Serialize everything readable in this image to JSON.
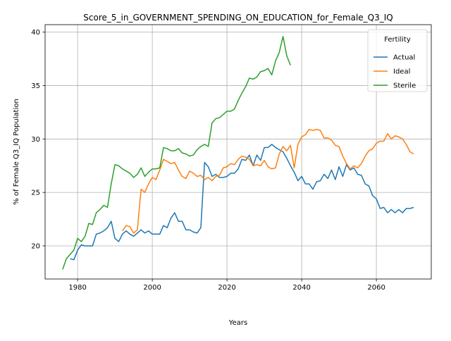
{
  "chart_data": {
    "type": "line",
    "title": "Score_5_in_GOVERNMENT_SPENDING_ON_EDUCATION_for_Female_Q3_IQ",
    "xlabel": "Years",
    "ylabel": "% of Female Q3_IQ Population",
    "xlim": [
      1971.3,
      2074.7
    ],
    "ylim": [
      16.9,
      40.7
    ],
    "xticks": [
      1980,
      2000,
      2020,
      2040,
      2060
    ],
    "yticks": [
      20,
      25,
      30,
      35,
      40
    ],
    "grid": true,
    "legend": {
      "title": "Fertility",
      "position": "top-right"
    },
    "series": [
      {
        "name": "Actual",
        "color": "#1f77b4",
        "x": [
          1978,
          1979,
          1980,
          1981,
          1982,
          1983,
          1984,
          1985,
          1986,
          1987,
          1988,
          1989,
          1990,
          1991,
          1992,
          1993,
          1994,
          1995,
          1996,
          1997,
          1998,
          1999,
          2000,
          2001,
          2002,
          2003,
          2004,
          2005,
          2006,
          2007,
          2008,
          2009,
          2010,
          2011,
          2012,
          2013,
          2014,
          2015,
          2016,
          2017,
          2018,
          2019,
          2020,
          2021,
          2022,
          2023,
          2024,
          2025,
          2026,
          2027,
          2028,
          2029,
          2030,
          2031,
          2032,
          2033,
          2034,
          2035,
          2036,
          2037,
          2038,
          2039,
          2040,
          2041,
          2042,
          2043,
          2044,
          2045,
          2046,
          2047,
          2048,
          2049,
          2050,
          2051,
          2052,
          2053,
          2054,
          2055,
          2056,
          2057,
          2058,
          2059,
          2060,
          2061,
          2062,
          2063,
          2064,
          2065,
          2066,
          2067,
          2068,
          2069,
          2070
        ],
        "values": [
          18.8,
          18.7,
          19.6,
          20.1,
          20.0,
          20.0,
          20.0,
          21.1,
          21.2,
          21.4,
          21.7,
          22.3,
          20.7,
          20.4,
          21.1,
          21.4,
          21.1,
          20.9,
          21.2,
          21.5,
          21.2,
          21.4,
          21.1,
          21.1,
          21.1,
          21.9,
          21.7,
          22.6,
          23.1,
          22.3,
          22.3,
          21.5,
          21.5,
          21.3,
          21.2,
          21.7,
          27.8,
          27.4,
          26.5,
          26.7,
          26.4,
          26.4,
          26.5,
          26.8,
          26.8,
          27.2,
          28.1,
          28.0,
          28.5,
          27.5,
          28.5,
          28.0,
          29.2,
          29.2,
          29.5,
          29.2,
          29.0,
          28.8,
          28.2,
          27.5,
          26.9,
          26.1,
          26.5,
          25.8,
          25.8,
          25.3,
          26.0,
          26.1,
          26.7,
          26.3,
          27.1,
          26.2,
          27.4,
          26.5,
          27.6,
          27.1,
          27.3,
          26.7,
          26.6,
          25.8,
          25.6,
          24.7,
          24.4,
          23.5,
          23.6,
          23.1,
          23.4,
          23.1,
          23.4,
          23.1,
          23.5,
          23.5,
          23.6
        ]
      },
      {
        "name": "Ideal",
        "color": "#ff7f0e",
        "x": [
          1992,
          1993,
          1994,
          1995,
          1996,
          1997,
          1998,
          1999,
          2000,
          2001,
          2002,
          2003,
          2004,
          2005,
          2006,
          2007,
          2008,
          2009,
          2010,
          2011,
          2012,
          2013,
          2014,
          2015,
          2016,
          2017,
          2018,
          2019,
          2020,
          2021,
          2022,
          2023,
          2024,
          2025,
          2026,
          2027,
          2028,
          2029,
          2030,
          2031,
          2032,
          2033,
          2034,
          2035,
          2036,
          2037,
          2038,
          2039,
          2040,
          2041,
          2042,
          2043,
          2044,
          2045,
          2046,
          2047,
          2048,
          2049,
          2050,
          2051,
          2052,
          2053,
          2054,
          2055,
          2056,
          2057,
          2058,
          2059,
          2060,
          2061,
          2062,
          2063,
          2064,
          2065,
          2066,
          2067,
          2068,
          2069,
          2070
        ],
        "values": [
          21.4,
          21.9,
          21.8,
          21.2,
          21.5,
          25.3,
          25.0,
          25.8,
          26.4,
          26.2,
          27.1,
          28.1,
          27.9,
          27.7,
          27.8,
          27.1,
          26.5,
          26.3,
          27.0,
          26.8,
          26.5,
          26.6,
          26.2,
          26.4,
          26.1,
          26.5,
          26.6,
          27.3,
          27.4,
          27.7,
          27.6,
          28.1,
          28.4,
          28.3,
          28.1,
          27.5,
          27.6,
          27.5,
          28.0,
          27.4,
          27.2,
          27.3,
          28.6,
          29.3,
          28.9,
          29.4,
          27.3,
          29.5,
          30.2,
          30.4,
          30.9,
          30.8,
          30.9,
          30.8,
          30.1,
          30.1,
          29.9,
          29.4,
          29.3,
          28.4,
          27.7,
          27.2,
          27.5,
          27.3,
          27.7,
          28.4,
          28.9,
          29.1,
          29.6,
          29.8,
          29.8,
          30.5,
          30.0,
          30.3,
          30.2,
          30.0,
          29.5,
          28.8,
          28.6
        ]
      },
      {
        "name": "Sterile",
        "color": "#2ca02c",
        "x": [
          1976,
          1977,
          1978,
          1979,
          1980,
          1981,
          1982,
          1983,
          1984,
          1985,
          1986,
          1987,
          1988,
          1989,
          1990,
          1991,
          1992,
          1993,
          1994,
          1995,
          1996,
          1997,
          1998,
          1999,
          2000,
          2001,
          2002,
          2003,
          2004,
          2005,
          2006,
          2007,
          2008,
          2009,
          2010,
          2011,
          2012,
          2013,
          2014,
          2015,
          2016,
          2017,
          2018,
          2019,
          2020,
          2021,
          2022,
          2023,
          2024,
          2025,
          2026,
          2027,
          2028,
          2029,
          2030,
          2031,
          2032,
          2033,
          2034,
          2035,
          2036,
          2037
        ],
        "values": [
          17.8,
          18.8,
          19.2,
          19.6,
          20.7,
          20.4,
          20.9,
          22.1,
          22.0,
          23.1,
          23.4,
          23.8,
          23.6,
          25.8,
          27.6,
          27.5,
          27.2,
          27.0,
          26.8,
          26.4,
          26.7,
          27.3,
          26.5,
          26.9,
          27.2,
          27.2,
          27.3,
          29.2,
          29.1,
          28.9,
          28.9,
          29.1,
          28.7,
          28.6,
          28.4,
          28.5,
          29.0,
          29.3,
          29.5,
          29.3,
          31.5,
          31.9,
          32.0,
          32.3,
          32.6,
          32.6,
          32.8,
          33.6,
          34.3,
          34.9,
          35.7,
          35.6,
          35.8,
          36.3,
          36.4,
          36.6,
          36.0,
          37.3,
          38.1,
          39.6,
          37.8,
          36.9
        ]
      }
    ]
  }
}
